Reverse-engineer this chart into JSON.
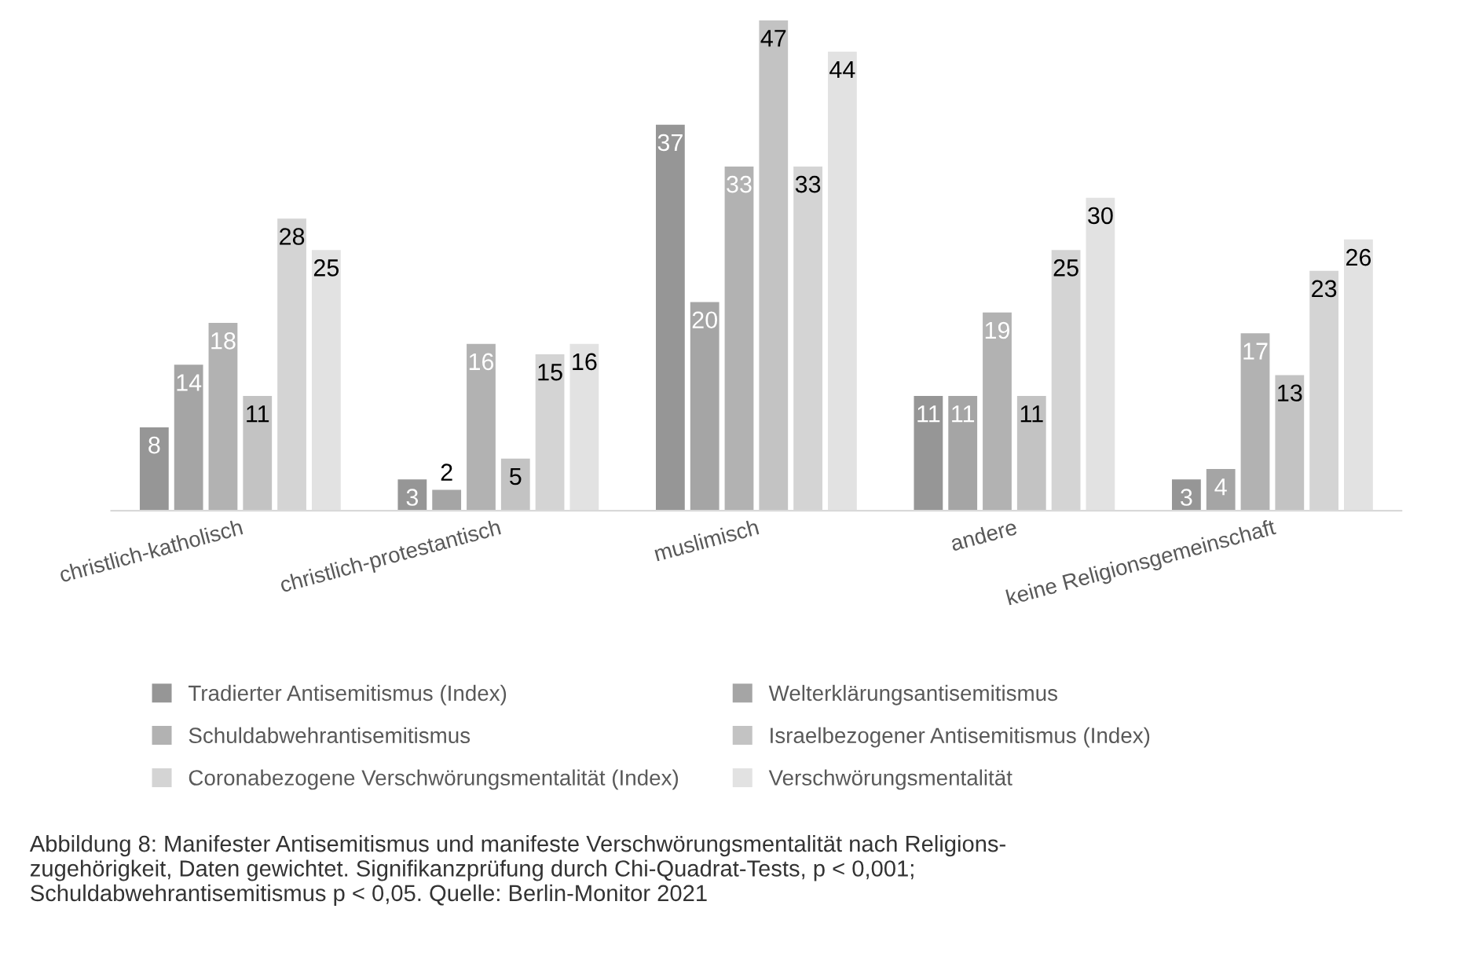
{
  "chart_data": {
    "type": "bar",
    "categories": [
      "christlich-katholisch",
      "christlich-protestantisch",
      "muslimisch",
      "andere",
      "keine Religionsgemeinschaft"
    ],
    "series": [
      {
        "name": "Tradierter Antisemitismus (Index)",
        "color": "#969696",
        "values": [
          8,
          3,
          37,
          11,
          3
        ]
      },
      {
        "name": "Welterklärungsantisemitismus",
        "color": "#a5a5a5",
        "values": [
          14,
          2,
          20,
          11,
          4
        ]
      },
      {
        "name": "Schuldabwehrantisemitismus",
        "color": "#b2b2b2",
        "values": [
          18,
          16,
          33,
          19,
          17
        ]
      },
      {
        "name": "Israelbezogener Antisemitismus (Index)",
        "color": "#c3c3c3",
        "values": [
          11,
          5,
          47,
          11,
          13
        ]
      },
      {
        "name": "Coronabezogene Verschwörungsmentalität (Index)",
        "color": "#d4d4d4",
        "values": [
          28,
          15,
          33,
          25,
          23
        ]
      },
      {
        "name": "Verschwörungsmentalität",
        "color": "#e2e2e2",
        "values": [
          25,
          16,
          44,
          30,
          26
        ]
      }
    ],
    "data_labels": true,
    "legend": "bottom",
    "grid": false,
    "annotations": [
      "Abbildung 8: Manifester Antisemitismus und manifeste Verschwörungsmentalität nach Religions-\nzugehörigkeit, Daten gewichtet. Signifikanzprüfung durch Chi-Quadrat-Tests, p < 0,001;\nSchuldabwehrantisemitismus p < 0,05. Quelle: Berlin-Monitor 2021"
    ]
  }
}
